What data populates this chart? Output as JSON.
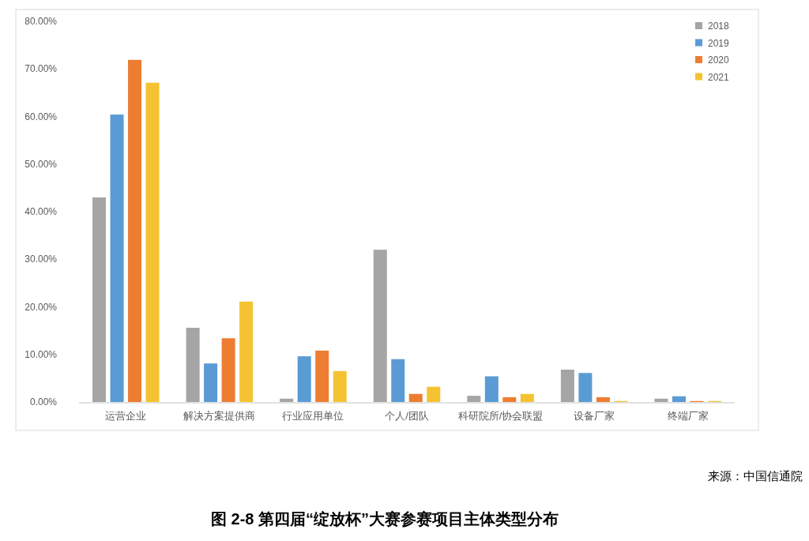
{
  "chart_data": {
    "type": "bar",
    "title": "图 2-8 第四届“绽放杯”大赛参赛项目主体类型分布",
    "annotations": [
      "来源：中国信通院"
    ],
    "categories": [
      "运营企业",
      "解决方案提供商",
      "行业应用单位",
      "个人/团队",
      "科研院所/协会联盟",
      "设备厂家",
      "终端厂家"
    ],
    "series": [
      {
        "name": "2018",
        "color": "#a5a5a5",
        "values": [
          43.0,
          15.6,
          0.7,
          32.0,
          1.3,
          6.8,
          0.7
        ]
      },
      {
        "name": "2019",
        "color": "#5b9bd5",
        "values": [
          60.4,
          8.1,
          9.6,
          9.0,
          5.4,
          6.1,
          1.2
        ]
      },
      {
        "name": "2020",
        "color": "#ed7d31",
        "values": [
          71.9,
          13.4,
          10.8,
          1.7,
          1.0,
          1.0,
          0.2
        ]
      },
      {
        "name": "2021",
        "color": "#f5c232",
        "values": [
          67.1,
          21.1,
          6.5,
          3.2,
          1.7,
          0.2,
          0.2
        ]
      }
    ],
    "ylim": [
      0,
      80
    ],
    "yticks": [
      {
        "value": 0,
        "label": "0.00%"
      },
      {
        "value": 10,
        "label": "10.00%"
      },
      {
        "value": 20,
        "label": "20.00%"
      },
      {
        "value": 30,
        "label": "30.00%"
      },
      {
        "value": 40,
        "label": "40.00%"
      },
      {
        "value": 50,
        "label": "50.00%"
      },
      {
        "value": 60,
        "label": "60.00%"
      },
      {
        "value": 70,
        "label": "70.00%"
      },
      {
        "value": 80,
        "label": "80.00%"
      }
    ],
    "grid": false,
    "legend": "top right"
  }
}
